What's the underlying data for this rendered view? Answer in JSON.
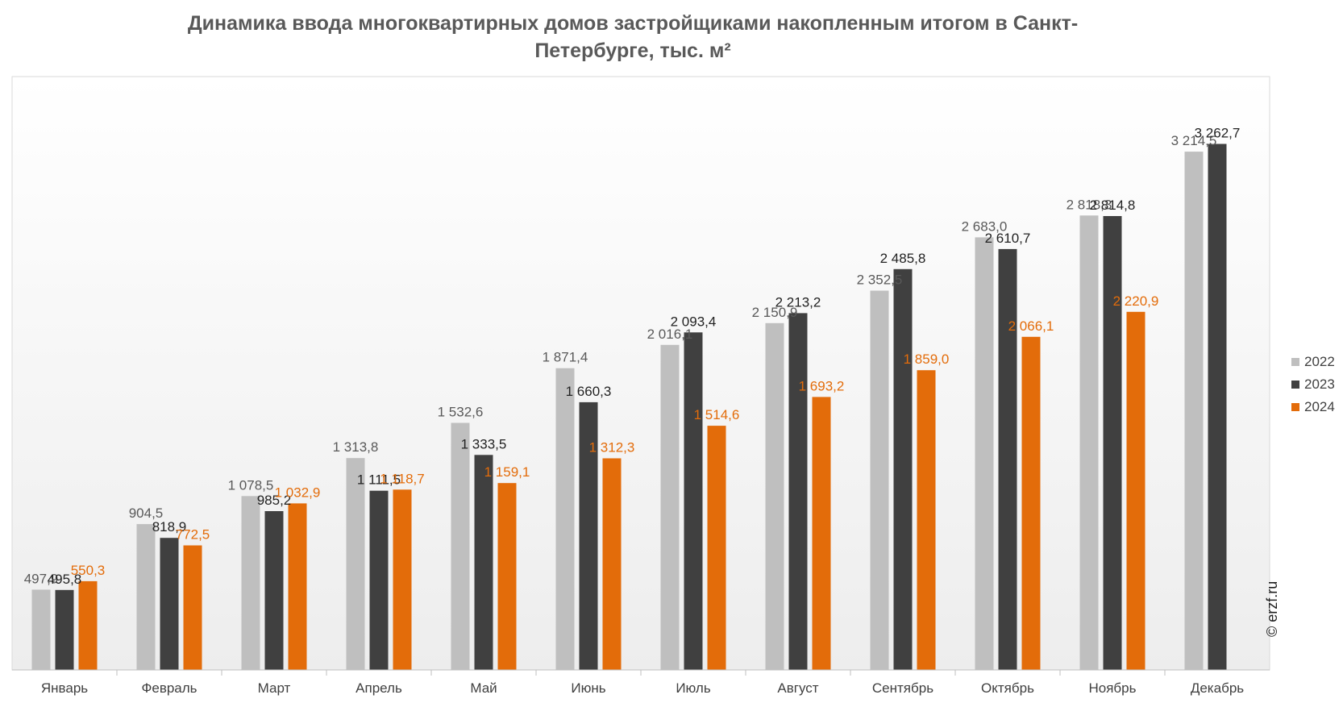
{
  "chart_data": {
    "type": "bar",
    "title": "Динамика ввода многоквартирных домов застройщиками накопленным итогом в Санкт-Петербурге, тыс. м²",
    "categories": [
      "Январь",
      "Февраль",
      "Март",
      "Апрель",
      "Май",
      "Июнь",
      "Июль",
      "Август",
      "Сентябрь",
      "Октябрь",
      "Ноябрь",
      "Декабрь"
    ],
    "series": [
      {
        "name": "2022",
        "color": "#bfbfbf",
        "label_color": "#595959",
        "values": [
          497.9,
          904.5,
          1078.5,
          1313.8,
          1532.6,
          1871.4,
          2016.1,
          2150.9,
          2352.5,
          2683.0,
          2818.3,
          3214.5
        ],
        "labels": [
          "497,9",
          "904,5",
          "1 078,5",
          "1 313,8",
          "1 532,6",
          "1 871,4",
          "2 016,1",
          "2 150,9",
          "2 352,5",
          "2 683,0",
          "2 818,3",
          "3 214,5"
        ]
      },
      {
        "name": "2023",
        "color": "#404040",
        "label_color": "#222222",
        "values": [
          495.8,
          818.9,
          985.2,
          1111.5,
          1333.5,
          1660.3,
          2093.4,
          2213.2,
          2485.8,
          2610.7,
          2814.8,
          3262.7
        ],
        "labels": [
          "495,8",
          "818,9",
          "985,2",
          "1 111,5",
          "1 333,5",
          "1 660,3",
          "2 093,4",
          "2 213,2",
          "2 485,8",
          "2 610,7",
          "2 814,8",
          "3 262,7"
        ]
      },
      {
        "name": "2024",
        "color": "#e36c0a",
        "label_color": "#e36c0a",
        "values": [
          550.3,
          772.5,
          1032.9,
          1118.7,
          1159.1,
          1312.3,
          1514.6,
          1693.2,
          1859.0,
          2066.1,
          2220.9,
          null
        ],
        "labels": [
          "550,3",
          "772,5",
          "1 032,9",
          "1 118,7",
          "1 159,1",
          "1 312,3",
          "1 514,6",
          "1 693,2",
          "1 859,0",
          "2 066,1",
          "2 220,9",
          ""
        ]
      }
    ],
    "ylim": [
      0,
      3500
    ],
    "grid": false,
    "legend_position": "right"
  },
  "watermark": "© erzf.ru"
}
